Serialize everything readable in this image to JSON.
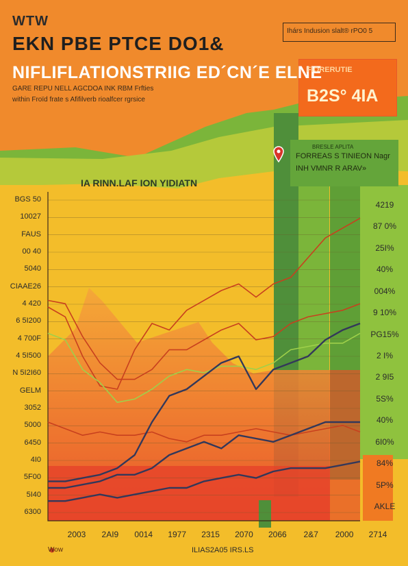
{
  "poster": {
    "kicker": "WTW",
    "headline": "EKN PBE PTCE DO1&",
    "title": "NIFLIFLATIONSTRIIG ED´CN´E ELNE",
    "subtitle1": "GARE REPU NELL AGCDOA INK RBM Frfties",
    "subtitle2": "within Froïd frate s Afifilverb rioalfcer rgrsice",
    "tagline": "Ihárs Indusion slalt® rPO0 5",
    "forecast_label": "FIORERUTIE",
    "forecast_value": "B2S° 4IA",
    "legend": [
      "BRESLE APLITA",
      "FORREAS S TINIEON Nagr",
      "INH VMNR R ARAV»"
    ],
    "chart_heading": "IA RINN.LAF ION YIDIATN",
    "footer_left": "Wow",
    "footer_mid": "ILIAS2A05 IRS.LS"
  },
  "colors": {
    "orange": "#f08a2c",
    "yellow": "#f3bd2a",
    "green": "#7bb53a",
    "dark_green": "#4f8f3a",
    "red_line": "#c8401e",
    "navy_line": "#33385a",
    "lime_line": "#9fd04a"
  },
  "chart_data": {
    "type": "line",
    "title": "IA RINN.LAF ION YIDIATN",
    "xlabel": "",
    "ylabel": "",
    "y_tick_labels": [
      "BGS 50",
      "10027",
      "FAUS",
      "00 40",
      "5040",
      "CIAAE26",
      "4 420",
      "6 5I200",
      "4 700F",
      "4 5I500",
      "N 5I2I60",
      "GELM",
      "3052",
      "5000",
      "6450",
      "4I0",
      "5F00",
      "5I40",
      "6300"
    ],
    "right_tick_labels": [
      "4219",
      "87 0%",
      "25I%",
      "40%",
      "004%",
      "9 10%",
      "PG15%",
      "2 I%",
      "2 9I5",
      "5S%",
      "40%",
      "6I0%",
      "84%",
      "5P%",
      "AKLE"
    ],
    "x_tick_labels": [
      "2003",
      "2AI9",
      "0014",
      "1977",
      "2315",
      "2070",
      "2066",
      "2&7",
      "2000",
      "2714"
    ],
    "x": [
      0,
      1,
      2,
      3,
      4,
      5,
      6,
      7,
      8,
      9,
      10,
      11,
      12,
      13,
      14,
      15,
      16,
      17,
      18
    ],
    "ylim": [
      0,
      100
    ],
    "series": [
      {
        "values": [
          65,
          62,
          50,
          41,
          40,
          52,
          60,
          58,
          64,
          67,
          70,
          72,
          68,
          72,
          74,
          80,
          86,
          89,
          92
        ]
      },
      {
        "values": [
          67,
          66,
          56,
          48,
          43,
          43,
          46,
          52,
          52,
          55,
          58,
          60,
          55,
          56,
          60,
          62,
          63,
          64,
          66
        ]
      },
      {
        "values": [
          57,
          55,
          46,
          42,
          36,
          37,
          40,
          44,
          46,
          45,
          47,
          47,
          46,
          48,
          52,
          53,
          54,
          54,
          57
        ]
      },
      {
        "values": [
          30,
          28,
          26,
          27,
          26,
          26,
          27,
          25,
          24,
          26,
          26,
          27,
          28,
          27,
          26,
          27,
          28,
          29,
          27
        ]
      },
      {
        "values": [
          12,
          12,
          13,
          14,
          16,
          20,
          30,
          38,
          40,
          44,
          48,
          50,
          40,
          46,
          48,
          50,
          55,
          58,
          60
        ]
      },
      {
        "values": [
          10,
          10,
          11,
          12,
          14,
          14,
          16,
          20,
          22,
          24,
          22,
          26,
          25,
          24,
          26,
          28,
          30,
          30,
          30
        ]
      },
      {
        "values": [
          6,
          6,
          7,
          8,
          7,
          8,
          9,
          10,
          10,
          12,
          13,
          14,
          13,
          15,
          16,
          16,
          16,
          17,
          18
        ]
      }
    ]
  }
}
